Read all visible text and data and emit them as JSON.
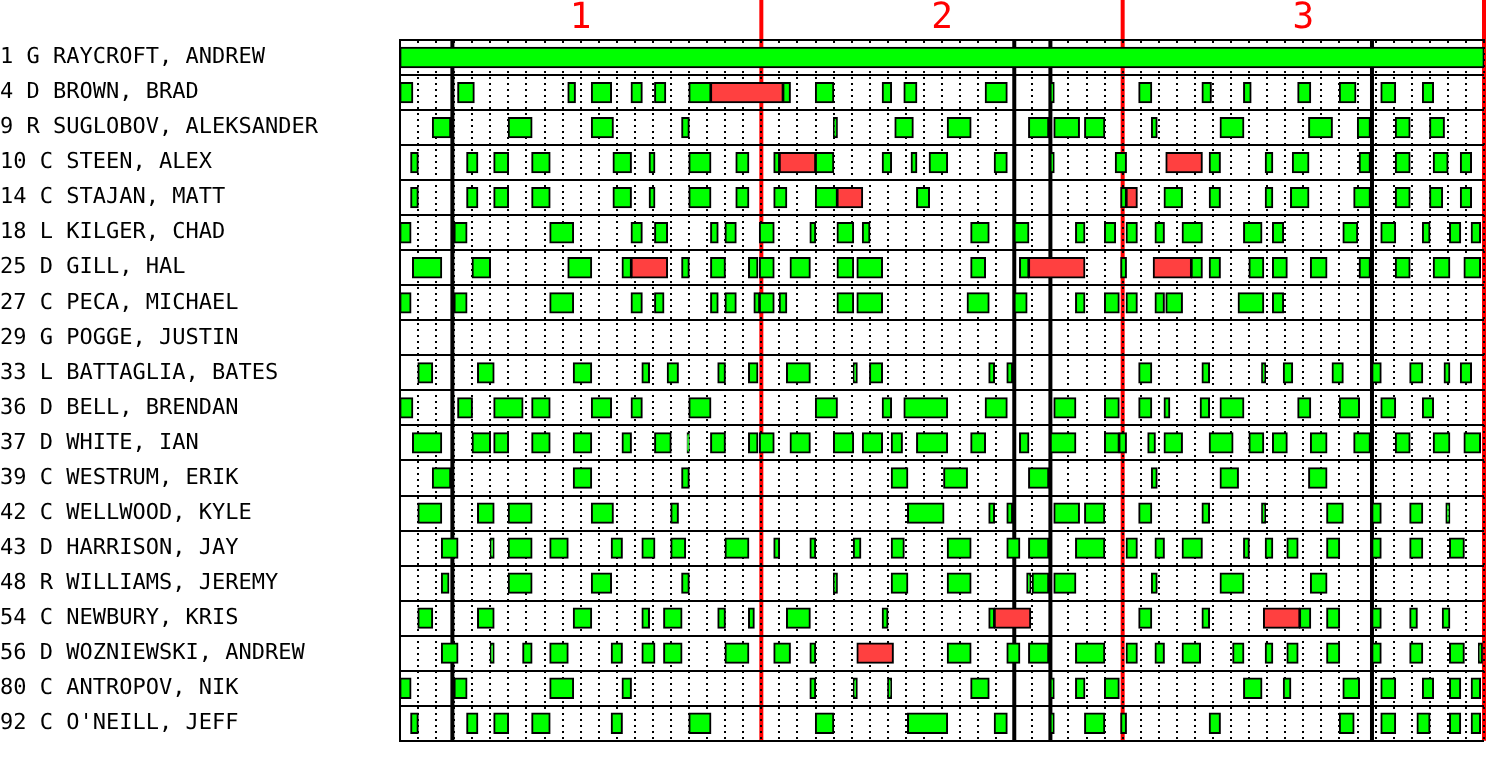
{
  "chart_data": {
    "type": "bar",
    "orientation": "horizontal",
    "grid": true,
    "categories": [
      "1 G RAYCROFT, ANDREW",
      "4 D BROWN, BRAD",
      "9 R SUGLOBOV, ALEKSANDER",
      "10 C STEEN, ALEX",
      "14 C STAJAN, MATT",
      "18 L KILGER, CHAD",
      "25 D GILL, HAL",
      "27 C PECA, MICHAEL",
      "29 G POGGE, JUSTIN",
      "33 L BATTAGLIA, BATES",
      "36 D BELL, BRENDAN",
      "37 D WHITE, IAN",
      "39 C WESTRUM, ERIK",
      "42 C WELLWOOD, KYLE",
      "43 D HARRISON, JAY",
      "48 R WILLIAMS, JEREMY",
      "54 C NEWBURY, KRIS",
      "56 D WOZNIEWSKI, ANDREW",
      "80 C ANTROPOV, NIK",
      "92 C O'NEILL, JEFF"
    ],
    "xlim": [
      0.5,
      3.5
    ],
    "xticks": [
      {
        "value": 0.5,
        "label": null
      },
      {
        "value": 0.55,
        "label": null
      },
      {
        "value": 0.6,
        "label": null
      },
      {
        "value": 0.65,
        "label": null
      },
      {
        "value": 0.7,
        "label": null
      },
      {
        "value": 0.75,
        "label": null
      },
      {
        "value": 0.8,
        "label": null
      },
      {
        "value": 0.85,
        "label": null
      },
      {
        "value": 0.9,
        "label": null
      },
      {
        "value": 0.95,
        "label": null
      },
      1,
      {
        "value": 1.05,
        "label": null
      },
      {
        "value": 1.1,
        "label": null
      },
      {
        "value": 1.15,
        "label": null
      },
      {
        "value": 1.2,
        "label": null
      },
      {
        "value": 1.25,
        "label": null
      },
      {
        "value": 1.3,
        "label": null
      },
      {
        "value": 1.35,
        "label": null
      },
      {
        "value": 1.4,
        "label": null
      },
      {
        "value": 1.45,
        "label": null
      },
      {
        "value": 1.5,
        "label": null
      },
      {
        "value": 1.55,
        "label": null
      },
      {
        "value": 1.6,
        "label": null
      },
      {
        "value": 1.65,
        "label": null
      },
      {
        "value": 1.7,
        "label": null
      },
      {
        "value": 1.75,
        "label": null
      },
      {
        "value": 1.8,
        "label": null
      },
      {
        "value": 1.85,
        "label": null
      },
      {
        "value": 1.9,
        "label": null
      },
      {
        "value": 1.95,
        "label": null
      },
      2,
      {
        "value": 2.05,
        "label": null
      },
      {
        "value": 2.1,
        "label": null
      },
      {
        "value": 2.15,
        "label": null
      },
      {
        "value": 2.2,
        "label": null
      },
      {
        "value": 2.25,
        "label": null
      },
      {
        "value": 2.3,
        "label": null
      },
      {
        "value": 2.35,
        "label": null
      },
      {
        "value": 2.4,
        "label": null
      },
      {
        "value": 2.45,
        "label": null
      },
      {
        "value": 2.5,
        "label": null
      },
      {
        "value": 2.55,
        "label": null
      },
      {
        "value": 2.6,
        "label": null
      },
      {
        "value": 2.65,
        "label": null
      },
      {
        "value": 2.7,
        "label": null
      },
      {
        "value": 2.75,
        "label": null
      },
      {
        "value": 2.8,
        "label": null
      },
      {
        "value": 2.85,
        "label": null
      },
      {
        "value": 2.9,
        "label": null
      },
      {
        "value": 2.95,
        "label": null
      },
      3,
      {
        "value": 3.05,
        "label": null
      },
      {
        "value": 3.1,
        "label": null
      },
      {
        "value": 3.15,
        "label": null
      },
      {
        "value": 3.2,
        "label": null
      },
      {
        "value": 3.25,
        "label": null
      },
      {
        "value": 3.3,
        "label": null
      },
      {
        "value": 3.35,
        "label": null
      },
      {
        "value": 3.4,
        "label": null
      },
      {
        "value": 3.45,
        "label": null
      },
      {
        "value": 3.5,
        "label": null
      }
    ],
    "ref_lines": [
      {
        "axis": "x",
        "value": 1.5,
        "color": "#ff0000"
      },
      {
        "axis": "x",
        "value": 2.5,
        "color": "#ff0000"
      },
      {
        "axis": "x",
        "value": 3.5,
        "color": "#ff0000"
      },
      {
        "axis": "x",
        "value": 0.645,
        "color": "#000000"
      },
      {
        "axis": "x",
        "value": 2.2,
        "color": "#000000"
      },
      {
        "axis": "x",
        "value": 2.3,
        "color": "#000000"
      },
      {
        "axis": "x",
        "value": 3.19,
        "color": "#000000"
      }
    ],
    "series": [
      {
        "color": "#00ff00",
        "base": [
          0.5,
          0.5,
          0.59,
          0.53,
          0.53,
          0.5,
          0.535,
          0.5,
          null,
          0.55,
          0.5,
          0.535,
          0.59,
          0.55,
          0.615,
          0.615,
          0.55,
          0.615,
          0.5,
          0.53
        ],
        "values": [
          3,
          0.035,
          0.05,
          0.02,
          0.02,
          0.03,
          0.08,
          0.03,
          null,
          0.04,
          0.035,
          0.08,
          0.05,
          0.065,
          0.045,
          0.02,
          0.04,
          0.045,
          0.03,
          0.02
        ]
      },
      {
        "color": "#00ff00",
        "base": [
          null,
          0.66,
          0.8,
          0.685,
          0.685,
          0.65,
          0.7,
          0.65,
          null,
          0.715,
          0.66,
          0.7,
          0.98,
          0.715,
          0.75,
          0.8,
          0.715,
          0.75,
          0.65,
          0.685
        ],
        "values": [
          null,
          0.045,
          0.065,
          0.03,
          0.03,
          0.035,
          0.05,
          0.035,
          null,
          0.045,
          0.04,
          0.05,
          0.05,
          0.045,
          0.01,
          0.065,
          0.045,
          0.01,
          0.035,
          0.03
        ]
      },
      {
        "color": "#00ff00",
        "base": [
          null,
          0.965,
          1.03,
          0.76,
          0.76,
          0.915,
          0.965,
          0.915,
          null,
          0.98,
          0.76,
          0.76,
          1.28,
          0.8,
          0.8,
          1.03,
          0.98,
          0.84,
          0.915,
          0.76
        ],
        "values": [
          null,
          0.02,
          0.06,
          0.04,
          0.04,
          0.065,
          0.065,
          0.065,
          null,
          0.05,
          0.08,
          0.04,
          0.02,
          0.065,
          0.065,
          0.055,
          0.05,
          0.025,
          0.065,
          0.04
        ]
      },
      {
        "color": "#00ff00",
        "base": [
          null,
          1.03,
          1.28,
          0.865,
          0.865,
          1.14,
          1.115,
          1.14,
          null,
          1.17,
          0.865,
          0.865,
          1.86,
          1.03,
          0.915,
          1.28,
          1.17,
          0.915,
          1.115,
          0.865
        ],
        "values": [
          null,
          0.055,
          0.02,
          0.05,
          0.05,
          0.03,
          0.025,
          0.03,
          null,
          0.02,
          0.05,
          0.05,
          0.045,
          0.06,
          0.05,
          0.02,
          0.02,
          0.05,
          0.025,
          0.05
        ]
      },
      {
        "color": "#00ff00",
        "base": [
          null,
          1.14,
          1.7,
          1.09,
          1.09,
          1.205,
          1.28,
          1.205,
          null,
          1.24,
          1.03,
          0.98,
          2.005,
          1.25,
          1.085,
          1.7,
          1.23,
          1.085,
          1.635,
          1.085
        ],
        "values": [
          null,
          0.03,
          0.01,
          0.05,
          0.05,
          0.035,
          0.02,
          0.025,
          null,
          0.03,
          0.055,
          0.05,
          0.065,
          0.02,
          0.03,
          0.01,
          0.05,
          0.03,
          0.015,
          0.03
        ]
      },
      {
        "color": "#00ff00",
        "base": [
          null,
          1.205,
          1.87,
          1.19,
          1.19,
          1.36,
          1.36,
          1.36,
          null,
          1.38,
          1.14,
          1.115,
          2.24,
          1.905,
          1.17,
          1.86,
          1.38,
          1.17,
          1.755,
          1.3
        ],
        "values": [
          null,
          0.03,
          0.05,
          0.015,
          0.015,
          0.02,
          0.04,
          0.02,
          null,
          0.02,
          0.03,
          0.025,
          0.055,
          0.1,
          0.035,
          0.045,
          0.02,
          0.035,
          0.01,
          0.06
        ]
      },
      {
        "color": "#00ff00",
        "base": [
          null,
          1.3,
          2.015,
          1.3,
          1.3,
          1.4,
          1.465,
          1.4,
          null,
          1.465,
          1.3,
          1.205,
          2.58,
          2.13,
          1.25,
          2.015,
          1.465,
          1.23,
          1.85,
          1.65
        ],
        "values": [
          null,
          0.06,
          0.065,
          0.06,
          0.06,
          0.03,
          0.025,
          0.03,
          null,
          0.025,
          0.06,
          0.045,
          0.015,
          0.015,
          0.04,
          0.065,
          0.015,
          0.05,
          0.01,
          0.05
        ]
      },
      {
        "color": "#00ff00",
        "base": [
          null,
          1.56,
          2.24,
          1.43,
          1.43,
          1.495,
          1.495,
          1.48,
          null,
          1.57,
          1.65,
          1.295,
          2.77,
          2.18,
          1.4,
          2.235,
          1.57,
          1.4,
          2.08,
          1.905
        ],
        "values": [
          null,
          0.02,
          0.055,
          0.035,
          0.035,
          0.04,
          0.04,
          0.015,
          null,
          0.065,
          0.06,
          0.005,
          0.05,
          0.015,
          0.065,
          0.01,
          0.065,
          0.065,
          0.05,
          0.11
        ]
      },
      {
        "color": "#00ff00",
        "base": [
          null,
          1.65,
          2.31,
          1.535,
          1.535,
          1.635,
          1.58,
          1.495,
          null,
          1.755,
          1.835,
          1.36,
          3.015,
          2.31,
          1.535,
          2.25,
          1.835,
          1.535,
          2.3,
          2.145
        ],
        "values": [
          null,
          0.05,
          0.07,
          0.015,
          0.035,
          0.015,
          0.055,
          0.04,
          null,
          0.01,
          0.025,
          0.04,
          0.05,
          0.07,
          0.015,
          0.045,
          0.015,
          0.045,
          0.01,
          0.035
        ]
      },
      {
        "color": "#00ff00",
        "base": [
          null,
          1.835,
          2.395,
          1.65,
          1.65,
          1.71,
          1.71,
          1.55,
          null,
          1.8,
          1.895,
          1.465,
          null,
          2.395,
          1.635,
          2.31,
          2.13,
          1.635,
          2.37,
          2.3
        ],
        "values": [
          null,
          0.025,
          0.055,
          0.05,
          0.06,
          0.045,
          0.045,
          0.02,
          null,
          0.035,
          0.12,
          0.025,
          null,
          0.055,
          0.015,
          0.06,
          0.015,
          0.015,
          0.025,
          0.01
        ]
      },
      {
        "color": "#00ff00",
        "base": [
          null,
          1.895,
          2.58,
          1.835,
          1.93,
          1.78,
          1.765,
          1.71,
          null,
          2.13,
          2.12,
          1.495,
          null,
          2.545,
          1.755,
          2.58,
          2.545,
          2.015,
          2.45,
          2.395
        ],
        "values": [
          null,
          0.035,
          0.015,
          0.025,
          0.035,
          0.02,
          0.07,
          0.045,
          null,
          0.015,
          0.06,
          0.04,
          null,
          0.035,
          0.02,
          0.015,
          0.035,
          0.065,
          0.04,
          0.055
        ]
      },
      {
        "color": "#00ff00",
        "base": [
          null,
          2.12,
          2.77,
          1.915,
          2.495,
          2.08,
          2.08,
          1.765,
          null,
          2.18,
          2.31,
          1.58,
          null,
          2.72,
          1.86,
          2.77,
          2.72,
          2.18,
          2.835,
          2.495
        ],
        "values": [
          null,
          0.06,
          0.065,
          0.015,
          0.015,
          0.05,
          0.04,
          0.07,
          null,
          0.015,
          0.06,
          0.055,
          null,
          0.02,
          0.035,
          0.065,
          0.02,
          0.035,
          0.05,
          0.015
        ]
      },
      {
        "color": "#00ff00",
        "base": [
          null,
          2.3,
          3.015,
          1.965,
          2.615,
          2.2,
          2.215,
          2.07,
          null,
          2.545,
          2.45,
          1.7,
          null,
          2.885,
          2.015,
          3.02,
          2.99,
          2.24,
          2.945,
          2.74
        ],
        "values": [
          null,
          0.01,
          0.065,
          0.05,
          0.05,
          0.04,
          0.025,
          0.06,
          null,
          0.035,
          0.04,
          0.055,
          null,
          0.01,
          0.065,
          0.045,
          0.03,
          0.055,
          0.02,
          0.03
        ]
      },
      {
        "color": "#00ff00",
        "base": [
          null,
          2.545,
          3.15,
          2.145,
          2.74,
          2.37,
          2.495,
          2.2,
          null,
          2.72,
          2.545,
          1.78,
          null,
          3.065,
          2.18,
          null,
          3.065,
          2.37,
          3.11,
          3.1
        ],
        "values": [
          null,
          0.035,
          0.035,
          0.035,
          0.03,
          0.025,
          0.015,
          0.035,
          null,
          0.02,
          0.035,
          0.055,
          null,
          0.045,
          0.035,
          null,
          0.035,
          0.08,
          0.045,
          0.04
        ]
      },
      {
        "color": "#00ff00",
        "base": [
          null,
          2.72,
          3.255,
          2.3,
          2.895,
          2.45,
          2.69,
          2.37,
          null,
          2.885,
          2.615,
          1.86,
          null,
          3.19,
          2.24,
          null,
          3.19,
          2.51,
          3.215,
          3.215
        ],
        "values": [
          null,
          0.025,
          0.04,
          0.01,
          0.02,
          0.03,
          0.03,
          0.025,
          null,
          0.01,
          0.015,
          0.03,
          null,
          0.025,
          0.055,
          null,
          0.025,
          0.03,
          0.04,
          0.04
        ]
      },
      {
        "color": "#00ff00",
        "base": [
          null,
          2.835,
          3.35,
          2.48,
          2.965,
          2.51,
          2.74,
          2.45,
          null,
          2.945,
          2.715,
          1.93,
          null,
          3.295,
          2.37,
          null,
          3.295,
          2.59,
          3.33,
          3.315
        ],
        "values": [
          null,
          0.02,
          0.04,
          0.03,
          0.05,
          0.03,
          0.03,
          0.04,
          null,
          0.025,
          0.025,
          0.085,
          null,
          0.035,
          0.08,
          null,
          0.02,
          0.025,
          0.03,
          0.035
        ]
      },
      {
        "color": "#00ff00",
        "base": [
          null,
          2.985,
          null,
          2.74,
          3.14,
          2.59,
          2.85,
          2.51,
          null,
          3.08,
          2.77,
          2.08,
          null,
          3.395,
          2.51,
          null,
          3.385,
          2.665,
          3.405,
          3.405
        ],
        "values": [
          null,
          0.035,
          null,
          0.03,
          0.045,
          0.025,
          0.04,
          0.03,
          null,
          0.03,
          0.065,
          0.04,
          null,
          0.01,
          0.03,
          null,
          0.02,
          0.05,
          0.03,
          0.03
        ]
      },
      {
        "color": "#00ff00",
        "base": [
          null,
          3.1,
          null,
          2.895,
          3.255,
          2.665,
          2.915,
          2.59,
          null,
          3.19,
          2.985,
          2.215,
          null,
          null,
          2.59,
          null,
          null,
          2.805,
          3.465,
          3.465
        ],
        "values": [
          null,
          0.045,
          null,
          0.02,
          0.04,
          0.055,
          0.04,
          0.025,
          null,
          0.025,
          0.035,
          0.025,
          null,
          null,
          0.025,
          null,
          null,
          0.03,
          0.025,
          0.025
        ]
      },
      {
        "color": "#00ff00",
        "base": [
          null,
          3.215,
          null,
          2.97,
          3.35,
          2.835,
          3.02,
          2.62,
          null,
          3.295,
          3.1,
          2.3,
          null,
          null,
          2.665,
          null,
          null,
          2.895,
          null,
          null
        ],
        "values": [
          null,
          0.04,
          null,
          0.045,
          0.035,
          0.05,
          0.045,
          0.045,
          null,
          0.035,
          0.055,
          0.07,
          null,
          null,
          0.055,
          null,
          null,
          0.02,
          null,
          null
        ]
      },
      {
        "color": "#00ff00",
        "base": [
          null,
          3.33,
          null,
          3.155,
          3.435,
          2.915,
          3.155,
          2.82,
          null,
          3.39,
          3.215,
          2.45,
          null,
          null,
          2.835,
          null,
          null,
          2.955,
          null,
          null
        ],
        "values": [
          null,
          0.03,
          null,
          0.03,
          0.03,
          0.03,
          0.03,
          0.07,
          null,
          0.015,
          0.04,
          0.04,
          null,
          null,
          0.015,
          null,
          null,
          0.03,
          null,
          null
        ]
      },
      {
        "color": "#00ff00",
        "base": [
          null,
          null,
          null,
          3.255,
          null,
          3.11,
          3.255,
          2.915,
          null,
          3.435,
          3.33,
          2.49,
          null,
          null,
          2.895,
          null,
          null,
          3.065,
          null,
          null
        ],
        "values": [
          null,
          null,
          null,
          0.04,
          null,
          0.04,
          0.04,
          0.03,
          null,
          0.03,
          0.03,
          0.02,
          null,
          null,
          0.02,
          null,
          null,
          0.035,
          null,
          null
        ]
      },
      {
        "color": "#00ff00",
        "base": [
          null,
          null,
          null,
          3.36,
          null,
          3.215,
          3.36,
          null,
          null,
          null,
          null,
          2.57,
          null,
          null,
          2.955,
          null,
          null,
          3.19,
          null,
          null
        ],
        "values": [
          null,
          null,
          null,
          0.04,
          null,
          0.04,
          0.045,
          null,
          null,
          null,
          null,
          0.02,
          null,
          null,
          0.03,
          null,
          null,
          0.025,
          null,
          null
        ]
      },
      {
        "color": "#00ff00",
        "base": [
          null,
          null,
          null,
          3.435,
          null,
          3.33,
          3.445,
          null,
          null,
          null,
          null,
          2.615,
          null,
          null,
          3.065,
          null,
          null,
          3.295,
          null,
          null
        ],
        "values": [
          null,
          null,
          null,
          0.03,
          null,
          0.02,
          0.045,
          null,
          null,
          null,
          null,
          0.05,
          null,
          null,
          0.035,
          null,
          null,
          0.035,
          null,
          null
        ]
      },
      {
        "color": "#00ff00",
        "base": [
          null,
          null,
          null,
          null,
          null,
          3.405,
          null,
          null,
          null,
          null,
          null,
          2.74,
          null,
          null,
          3.19,
          null,
          null,
          3.405,
          null,
          null
        ],
        "values": [
          null,
          null,
          null,
          null,
          null,
          0.03,
          null,
          null,
          null,
          null,
          null,
          0.065,
          null,
          null,
          0.025,
          null,
          null,
          0.04,
          null,
          null
        ]
      },
      {
        "color": "#00ff00",
        "base": [
          null,
          null,
          null,
          null,
          null,
          3.465,
          null,
          null,
          null,
          null,
          null,
          2.85,
          null,
          null,
          3.295,
          null,
          null,
          3.485,
          null,
          null
        ],
        "values": [
          null,
          null,
          null,
          null,
          null,
          0.025,
          null,
          null,
          null,
          null,
          null,
          0.04,
          null,
          null,
          0.035,
          null,
          null,
          0.01,
          null,
          null
        ]
      },
      {
        "color": "#00ff00",
        "base": [
          null,
          null,
          null,
          null,
          null,
          null,
          null,
          null,
          null,
          null,
          null,
          2.915,
          null,
          null,
          3.405,
          null,
          null,
          null,
          null,
          null
        ],
        "values": [
          null,
          null,
          null,
          null,
          null,
          null,
          null,
          null,
          null,
          null,
          null,
          0.04,
          null,
          null,
          0.04,
          null,
          null,
          null,
          null,
          null
        ]
      },
      {
        "color": "#00ff00",
        "base": [
          null,
          null,
          null,
          null,
          null,
          null,
          null,
          null,
          null,
          null,
          null,
          3.02,
          null,
          null,
          null,
          null,
          null,
          null,
          null,
          null
        ],
        "values": [
          null,
          null,
          null,
          null,
          null,
          null,
          null,
          null,
          null,
          null,
          null,
          0.045,
          null,
          null,
          null,
          null,
          null,
          null,
          null,
          null
        ]
      },
      {
        "color": "#00ff00",
        "base": [
          null,
          null,
          null,
          null,
          null,
          null,
          null,
          null,
          null,
          null,
          null,
          3.14,
          null,
          null,
          null,
          null,
          null,
          null,
          null,
          null
        ],
        "values": [
          null,
          null,
          null,
          null,
          null,
          null,
          null,
          null,
          null,
          null,
          null,
          0.045,
          null,
          null,
          null,
          null,
          null,
          null,
          null,
          null
        ]
      },
      {
        "color": "#00ff00",
        "base": [
          null,
          null,
          null,
          null,
          null,
          null,
          null,
          null,
          null,
          null,
          null,
          3.255,
          null,
          null,
          null,
          null,
          null,
          null,
          null,
          null
        ],
        "values": [
          null,
          null,
          null,
          null,
          null,
          null,
          null,
          null,
          null,
          null,
          null,
          0.04,
          null,
          null,
          null,
          null,
          null,
          null,
          null,
          null
        ]
      },
      {
        "color": "#00ff00",
        "base": [
          null,
          null,
          null,
          null,
          null,
          null,
          null,
          null,
          null,
          null,
          null,
          3.36,
          null,
          null,
          null,
          null,
          null,
          null,
          null,
          null
        ],
        "values": [
          null,
          null,
          null,
          null,
          null,
          null,
          null,
          null,
          null,
          null,
          null,
          0.045,
          null,
          null,
          null,
          null,
          null,
          null,
          null,
          null
        ]
      },
      {
        "color": "#00ff00",
        "base": [
          null,
          null,
          null,
          null,
          null,
          null,
          null,
          null,
          null,
          null,
          null,
          3.445,
          null,
          null,
          null,
          null,
          null,
          null,
          null,
          null
        ],
        "values": [
          null,
          null,
          null,
          null,
          null,
          null,
          null,
          null,
          null,
          null,
          null,
          0.045,
          null,
          null,
          null,
          null,
          null,
          null,
          null,
          null
        ]
      },
      {
        "color": "#ff4040",
        "base": [
          null,
          1.36,
          null,
          1.55,
          1.71,
          null,
          1.14,
          null,
          null,
          null,
          null,
          null,
          null,
          null,
          null,
          null,
          2.145,
          1.765,
          null,
          null
        ],
        "values": [
          null,
          0.2,
          null,
          0.1,
          0.07,
          null,
          0.1,
          null,
          null,
          null,
          null,
          null,
          null,
          null,
          null,
          null,
          0.1,
          0.1,
          null,
          null
        ]
      },
      {
        "color": "#ff4040",
        "base": [
          null,
          null,
          null,
          2.62,
          2.51,
          null,
          2.24,
          null,
          null,
          null,
          null,
          null,
          null,
          null,
          null,
          null,
          2.89,
          null,
          null,
          null
        ],
        "values": [
          null,
          null,
          null,
          0.1,
          0.03,
          null,
          0.155,
          null,
          null,
          null,
          null,
          null,
          null,
          null,
          null,
          null,
          0.1,
          null,
          null,
          null
        ]
      },
      {
        "color": "#ff4040",
        "base": [
          null,
          null,
          null,
          null,
          null,
          null,
          2.585,
          null,
          null,
          null,
          null,
          null,
          null,
          null,
          null,
          null,
          null,
          null,
          null,
          null
        ],
        "values": [
          null,
          null,
          null,
          null,
          null,
          null,
          0.105,
          null,
          null,
          null,
          null,
          null,
          null,
          null,
          null,
          null,
          null,
          null,
          null,
          null
        ]
      }
    ]
  }
}
